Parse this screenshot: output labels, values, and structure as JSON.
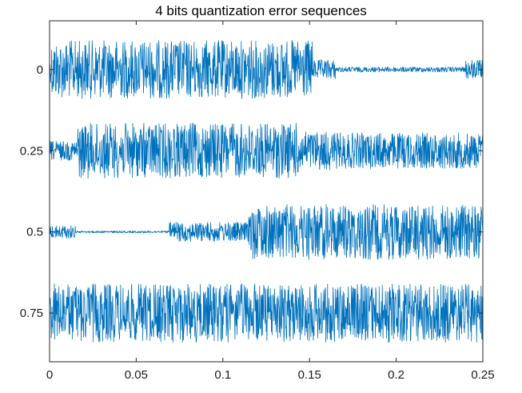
{
  "chart_data": {
    "type": "line",
    "title": "4 bits quantization error sequences",
    "xlabel": "",
    "ylabel": "",
    "xlim": [
      0,
      0.25
    ],
    "ylim": [
      0.9,
      -0.15
    ],
    "y_axis_reversed": true,
    "grid": false,
    "line_color": "#0072BD",
    "x_ticks": [
      0,
      0.05,
      0.1,
      0.15,
      0.2,
      0.25
    ],
    "x_tick_labels": [
      "0",
      "0.05",
      "0.1",
      "0.15",
      "0.2",
      "0.25"
    ],
    "y_ticks": [
      0,
      0.25,
      0.5,
      0.75
    ],
    "y_tick_labels": [
      "0",
      "0.25",
      "0.5",
      "0.75"
    ],
    "sample_step": 0.0002,
    "series": [
      {
        "offset": 0,
        "segments": [
          {
            "x_start": 0.0,
            "x_end": 0.001,
            "amplitude": 0.04
          },
          {
            "x_start": 0.001,
            "x_end": 0.152,
            "amplitude": 0.09
          },
          {
            "x_start": 0.152,
            "x_end": 0.165,
            "amplitude": 0.03
          },
          {
            "x_start": 0.165,
            "x_end": 0.24,
            "amplitude": 0.008
          },
          {
            "x_start": 0.24,
            "x_end": 0.25,
            "amplitude": 0.03
          }
        ]
      },
      {
        "offset": 0.25,
        "segments": [
          {
            "x_start": 0.0,
            "x_end": 0.016,
            "amplitude": 0.03
          },
          {
            "x_start": 0.016,
            "x_end": 0.145,
            "amplitude": 0.085
          },
          {
            "x_start": 0.145,
            "x_end": 0.165,
            "amplitude": 0.06
          },
          {
            "x_start": 0.165,
            "x_end": 0.25,
            "amplitude": 0.055
          }
        ]
      },
      {
        "offset": 0.5,
        "segments": [
          {
            "x_start": 0.0,
            "x_end": 0.015,
            "amplitude": 0.02
          },
          {
            "x_start": 0.015,
            "x_end": 0.069,
            "amplitude": 0.003
          },
          {
            "x_start": 0.069,
            "x_end": 0.115,
            "amplitude": 0.03
          },
          {
            "x_start": 0.115,
            "x_end": 0.25,
            "amplitude": 0.085
          }
        ]
      },
      {
        "offset": 0.75,
        "segments": [
          {
            "x_start": 0.0,
            "x_end": 0.25,
            "amplitude": 0.09
          }
        ]
      }
    ]
  }
}
